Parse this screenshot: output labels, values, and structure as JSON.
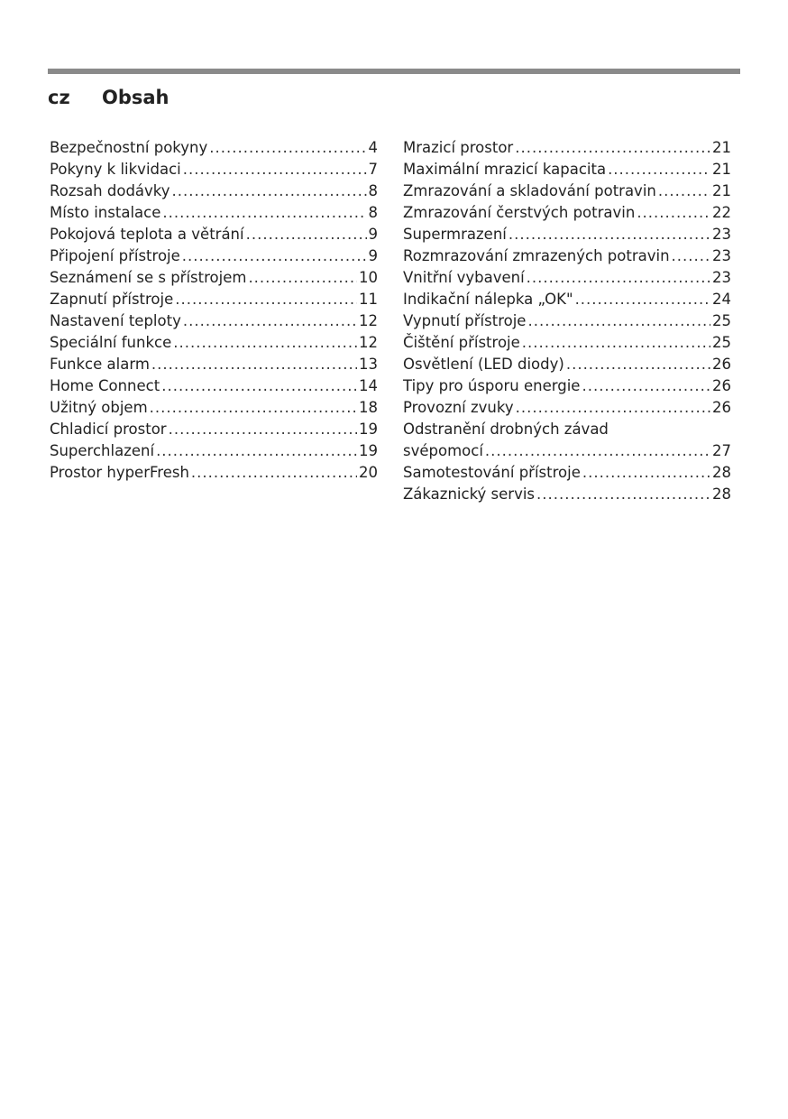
{
  "header": {
    "language": "cz",
    "title": "Obsah"
  },
  "toc_left": [
    {
      "label": "Bezpečnostní pokyny",
      "page": "4"
    },
    {
      "label": "Pokyny k likvidaci",
      "page": "7"
    },
    {
      "label": "Rozsah dodávky",
      "page": "8"
    },
    {
      "label": "Místo instalace",
      "page": "8"
    },
    {
      "label": "Pokojová teplota a větrání",
      "page": "9"
    },
    {
      "label": "Připojení přístroje",
      "page": "9"
    },
    {
      "label": "Seznámení se s přístrojem",
      "page": "10"
    },
    {
      "label": "Zapnutí přístroje",
      "page": "11"
    },
    {
      "label": "Nastavení teploty",
      "page": "12"
    },
    {
      "label": "Speciální funkce",
      "page": "12"
    },
    {
      "label": "Funkce alarm",
      "page": "13"
    },
    {
      "label": "Home Connect",
      "page": "14"
    },
    {
      "label": "Užitný objem",
      "page": "18"
    },
    {
      "label": "Chladicí prostor",
      "page": "19"
    },
    {
      "label": "Superchlazení",
      "page": "19"
    },
    {
      "label": "Prostor hyperFresh",
      "page": "20"
    }
  ],
  "toc_right": [
    {
      "label": "Mrazicí prostor",
      "page": "21"
    },
    {
      "label": "Maximální mrazicí kapacita",
      "page": "21"
    },
    {
      "label": "Zmrazování a skladování potravin",
      "page": "21"
    },
    {
      "label": "Zmrazování čerstvých potravin",
      "page": "22"
    },
    {
      "label": "Supermrazení",
      "page": "23"
    },
    {
      "label": "Rozmrazování zmrazených potravin",
      "page": "23"
    },
    {
      "label": "Vnitřní vybavení",
      "page": "23"
    },
    {
      "label": "Indikační nálepka „OK\"",
      "page": "24"
    },
    {
      "label": "Vypnutí přístroje",
      "page": "25"
    },
    {
      "label": "Čištění přístroje",
      "page": "25"
    },
    {
      "label": "Osvětlení (LED diody)",
      "page": "26"
    },
    {
      "label": "Tipy pro úsporu energie",
      "page": "26"
    },
    {
      "label": "Provozní zvuky",
      "page": "26"
    },
    {
      "label": "Odstranění drobných závad",
      "page": ""
    },
    {
      "label": "svépomocí",
      "page": "27"
    },
    {
      "label": "Samotestování přístroje",
      "page": "28"
    },
    {
      "label": "Zákaznický servis",
      "page": "28"
    }
  ]
}
